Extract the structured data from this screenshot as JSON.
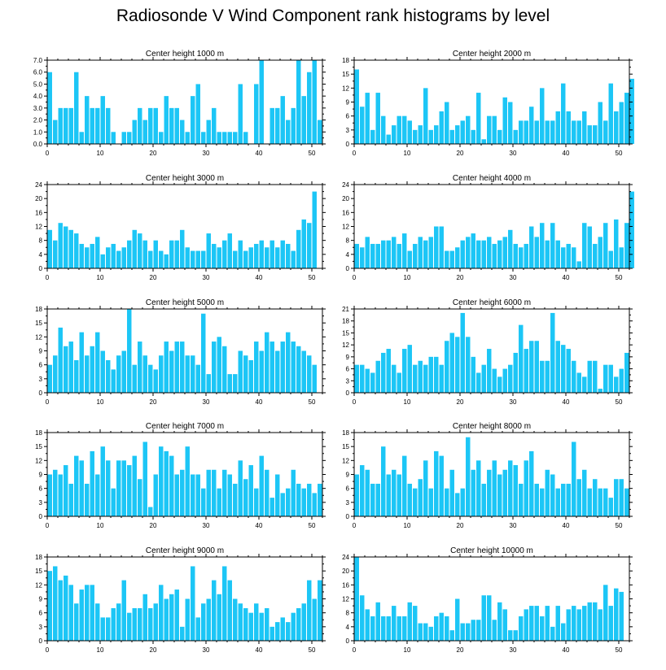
{
  "title": "Radiosonde V Wind Component rank histograms by level",
  "colors": {
    "bar": "#1cc6f6",
    "axis": "#000000"
  },
  "chart_data": [
    {
      "type": "bar",
      "title": "Center height 1000 m",
      "xlim": [
        0,
        52
      ],
      "ylim": [
        0,
        7
      ],
      "yticks": [
        0,
        1,
        2,
        3,
        4,
        5,
        6,
        7
      ],
      "ytick_labels": [
        "0.0",
        "1.0",
        "2.0",
        "3.0",
        "4.0",
        "5.0",
        "6.0",
        "7.0"
      ],
      "xticks": [
        0,
        10,
        20,
        30,
        40,
        50
      ],
      "values": [
        6,
        2,
        3,
        3,
        3,
        6,
        1,
        4,
        3,
        3,
        4,
        3,
        1,
        0,
        1,
        1,
        2,
        3,
        2,
        3,
        3,
        1,
        4,
        3,
        3,
        2,
        1,
        4,
        5,
        1,
        2,
        3,
        1,
        1,
        1,
        1,
        5,
        1,
        0,
        5,
        7,
        0,
        3,
        3,
        4,
        2,
        3,
        7,
        4,
        6,
        7,
        2
      ]
    },
    {
      "type": "bar",
      "title": "Center height 2000 m",
      "xlim": [
        0,
        52
      ],
      "ylim": [
        0,
        18
      ],
      "yticks": [
        0,
        3,
        6,
        9,
        12,
        15,
        18
      ],
      "ytick_labels": [
        "0",
        "3",
        "6",
        "9",
        "12",
        "15",
        "18"
      ],
      "xticks": [
        0,
        10,
        20,
        30,
        40,
        50
      ],
      "values": [
        16,
        8,
        11,
        3,
        11,
        6,
        2,
        4,
        6,
        6,
        5,
        3,
        4,
        12,
        3,
        4,
        7,
        9,
        3,
        4,
        5,
        6,
        3,
        11,
        1,
        6,
        6,
        3,
        10,
        9,
        3,
        5,
        5,
        8,
        5,
        12,
        5,
        5,
        7,
        13,
        7,
        5,
        5,
        7,
        4,
        4,
        9,
        5,
        13,
        7,
        9,
        11,
        14
      ]
    },
    {
      "type": "bar",
      "title": "Center height 3000 m",
      "xlim": [
        0,
        52
      ],
      "ylim": [
        0,
        24
      ],
      "yticks": [
        0,
        4,
        8,
        12,
        16,
        20,
        24
      ],
      "ytick_labels": [
        "0",
        "4",
        "8",
        "12",
        "16",
        "20",
        "24"
      ],
      "xticks": [
        0,
        10,
        20,
        30,
        40,
        50
      ],
      "values": [
        11,
        8,
        13,
        12,
        11,
        10,
        7,
        6,
        7,
        9,
        4,
        6,
        7,
        5,
        6,
        8,
        11,
        10,
        8,
        5,
        8,
        5,
        4,
        8,
        8,
        11,
        6,
        5,
        5,
        5,
        10,
        7,
        6,
        8,
        10,
        5,
        8,
        5,
        6,
        7,
        8,
        6,
        8,
        6,
        8,
        7,
        5,
        11,
        14,
        13,
        22
      ]
    },
    {
      "type": "bar",
      "title": "Center height 4000 m",
      "xlim": [
        0,
        52
      ],
      "ylim": [
        0,
        24
      ],
      "yticks": [
        0,
        4,
        8,
        12,
        16,
        20,
        24
      ],
      "ytick_labels": [
        "0",
        "4",
        "8",
        "12",
        "16",
        "20",
        "24"
      ],
      "xticks": [
        0,
        10,
        20,
        30,
        40,
        50
      ],
      "values": [
        7,
        6,
        9,
        7,
        7,
        8,
        8,
        9,
        7,
        10,
        5,
        7,
        9,
        8,
        9,
        12,
        12,
        5,
        5,
        6,
        8,
        9,
        10,
        8,
        8,
        9,
        7,
        8,
        9,
        11,
        7,
        6,
        7,
        12,
        9,
        13,
        8,
        13,
        8,
        6,
        7,
        6,
        2,
        13,
        12,
        7,
        9,
        13,
        5,
        14,
        6,
        13,
        22
      ]
    },
    {
      "type": "bar",
      "title": "Center height 5000 m",
      "xlim": [
        0,
        52
      ],
      "ylim": [
        0,
        18
      ],
      "yticks": [
        0,
        3,
        6,
        9,
        12,
        15,
        18
      ],
      "ytick_labels": [
        "0",
        "3",
        "6",
        "9",
        "12",
        "15",
        "18"
      ],
      "xticks": [
        0,
        10,
        20,
        30,
        40,
        50
      ],
      "values": [
        6,
        8,
        14,
        10,
        11,
        7,
        13,
        8,
        10,
        13,
        9,
        7,
        5,
        8,
        9,
        18,
        6,
        11,
        8,
        6,
        5,
        8,
        11,
        9,
        11,
        11,
        8,
        8,
        6,
        17,
        4,
        11,
        12,
        10,
        4,
        4,
        9,
        8,
        7,
        11,
        9,
        13,
        11,
        9,
        11,
        13,
        11,
        10,
        9,
        8,
        6
      ]
    },
    {
      "type": "bar",
      "title": "Center height 6000 m",
      "xlim": [
        0,
        52
      ],
      "ylim": [
        0,
        21
      ],
      "yticks": [
        0,
        3,
        6,
        9,
        12,
        15,
        18,
        21
      ],
      "ytick_labels": [
        "0",
        "3",
        "6",
        "9",
        "12",
        "15",
        "18",
        "21"
      ],
      "xticks": [
        0,
        10,
        20,
        30,
        40,
        50
      ],
      "values": [
        7,
        7,
        6,
        5,
        8,
        10,
        11,
        7,
        5,
        11,
        12,
        7,
        8,
        7,
        9,
        9,
        7,
        13,
        15,
        14,
        20,
        14,
        9,
        5,
        7,
        11,
        6,
        4,
        6,
        7,
        10,
        17,
        11,
        13,
        13,
        8,
        8,
        20,
        13,
        12,
        11,
        8,
        5,
        4,
        8,
        8,
        1,
        7,
        7,
        4,
        6,
        10
      ]
    },
    {
      "type": "bar",
      "title": "Center height 7000 m",
      "xlim": [
        0,
        52
      ],
      "ylim": [
        0,
        18
      ],
      "yticks": [
        0,
        3,
        6,
        9,
        12,
        15,
        18
      ],
      "ytick_labels": [
        "0",
        "3",
        "6",
        "9",
        "12",
        "15",
        "18"
      ],
      "xticks": [
        0,
        10,
        20,
        30,
        40,
        50
      ],
      "values": [
        9,
        10,
        9,
        11,
        7,
        13,
        12,
        7,
        14,
        9,
        15,
        12,
        6,
        12,
        12,
        11,
        13,
        8,
        16,
        2,
        9,
        15,
        14,
        13,
        9,
        10,
        15,
        9,
        9,
        6,
        10,
        10,
        6,
        10,
        9,
        7,
        12,
        8,
        11,
        6,
        13,
        10,
        4,
        9,
        5,
        6,
        10,
        7,
        6,
        7,
        5,
        7
      ]
    },
    {
      "type": "bar",
      "title": "Center height 8000 m",
      "xlim": [
        0,
        52
      ],
      "ylim": [
        0,
        18
      ],
      "yticks": [
        0,
        3,
        6,
        9,
        12,
        15,
        18
      ],
      "ytick_labels": [
        "0",
        "3",
        "6",
        "9",
        "12",
        "15",
        "18"
      ],
      "xticks": [
        0,
        10,
        20,
        30,
        40,
        50
      ],
      "values": [
        9,
        11,
        10,
        7,
        7,
        15,
        9,
        10,
        9,
        13,
        7,
        6,
        8,
        12,
        6,
        14,
        13,
        6,
        10,
        5,
        6,
        17,
        10,
        12,
        7,
        10,
        12,
        9,
        10,
        12,
        11,
        7,
        12,
        14,
        7,
        6,
        10,
        9,
        6,
        7,
        7,
        16,
        8,
        10,
        6,
        8,
        6,
        6,
        4,
        8,
        8,
        6
      ]
    },
    {
      "type": "bar",
      "title": "Center height 9000 m",
      "xlim": [
        0,
        52
      ],
      "ylim": [
        0,
        18
      ],
      "yticks": [
        0,
        3,
        6,
        9,
        12,
        15,
        18
      ],
      "ytick_labels": [
        "0",
        "3",
        "6",
        "9",
        "12",
        "15",
        "18"
      ],
      "xticks": [
        0,
        10,
        20,
        30,
        40,
        50
      ],
      "values": [
        15,
        16,
        13,
        14,
        12,
        8,
        11,
        12,
        12,
        8,
        5,
        5,
        7,
        8,
        13,
        6,
        7,
        7,
        10,
        7,
        8,
        12,
        9,
        10,
        11,
        3,
        9,
        16,
        5,
        8,
        9,
        13,
        10,
        16,
        13,
        9,
        8,
        7,
        6,
        8,
        6,
        7,
        3,
        4,
        5,
        4,
        6,
        7,
        8,
        13,
        9,
        13
      ]
    },
    {
      "type": "bar",
      "title": "Center height 10000 m",
      "xlim": [
        0,
        52
      ],
      "ylim": [
        0,
        24
      ],
      "yticks": [
        0,
        4,
        8,
        12,
        16,
        20,
        24
      ],
      "ytick_labels": [
        "0",
        "4",
        "8",
        "12",
        "16",
        "20",
        "24"
      ],
      "xticks": [
        0,
        10,
        20,
        30,
        40,
        50
      ],
      "values": [
        24,
        13,
        9,
        7,
        11,
        7,
        7,
        10,
        7,
        7,
        11,
        10,
        5,
        5,
        4,
        7,
        8,
        7,
        3,
        12,
        5,
        5,
        6,
        6,
        13,
        13,
        6,
        11,
        9,
        3,
        3,
        7,
        9,
        10,
        10,
        7,
        10,
        4,
        10,
        5,
        9,
        10,
        9,
        10,
        11,
        11,
        9,
        16,
        10,
        15,
        14
      ]
    }
  ]
}
